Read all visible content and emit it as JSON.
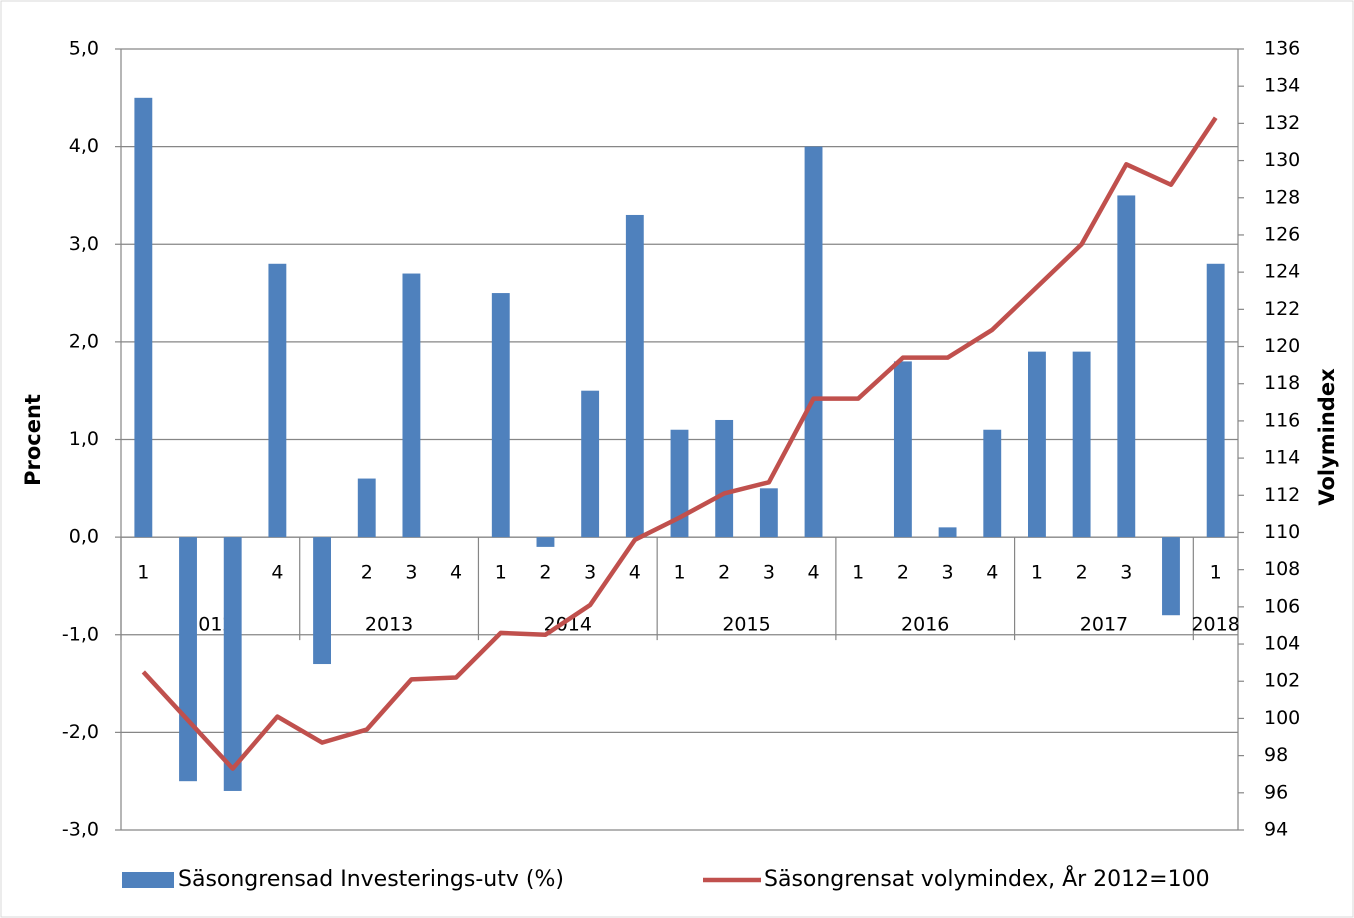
{
  "chart_data": {
    "type": "bar_line",
    "categories": [
      "1",
      "2",
      "3",
      "4",
      "1",
      "2",
      "3",
      "4",
      "1",
      "2",
      "3",
      "4",
      "1",
      "2",
      "3",
      "4",
      "1",
      "2",
      "3",
      "4",
      "1",
      "2",
      "3",
      "4",
      "1"
    ],
    "groups": [
      "2012",
      "2013",
      "2014",
      "2015",
      "2016",
      "2017",
      "2018"
    ],
    "series": [
      {
        "name": "Säsongrensad Investerings-utv (%)",
        "type": "bar",
        "color": "#4f81bd",
        "axis": "y",
        "values": [
          4.5,
          -2.5,
          -2.6,
          2.8,
          -1.3,
          0.6,
          2.7,
          0,
          2.5,
          -0.1,
          1.5,
          3.3,
          1.1,
          1.2,
          0.5,
          4.0,
          0,
          1.8,
          0.1,
          1.1,
          1.9,
          1.9,
          3.5,
          -0.8,
          2.8
        ]
      },
      {
        "name": "Säsongrensat volymindex, År 2012=100",
        "type": "line",
        "color": "#c0504d",
        "axis": "y2",
        "values": [
          102.5,
          99.9,
          97.3,
          100.1,
          98.7,
          99.4,
          102.1,
          102.2,
          104.6,
          104.5,
          106.1,
          109.6,
          110.8,
          112.1,
          112.7,
          117.2,
          117.2,
          119.4,
          119.4,
          120.9,
          123.2,
          125.5,
          129.8,
          128.7,
          132.3
        ]
      }
    ],
    "ylabel": "Procent",
    "y2label": "Volymindex",
    "ylim": [
      -3,
      5
    ],
    "yticks": [
      {
        "value": 5,
        "label": "5,0"
      },
      {
        "value": 4,
        "label": "4,0"
      },
      {
        "value": 3,
        "label": "3,0"
      },
      {
        "value": 2,
        "label": "2,0"
      },
      {
        "value": 1,
        "label": "1,0"
      },
      {
        "value": 0,
        "label": "0,0"
      },
      {
        "value": -1,
        "label": "-1,0"
      },
      {
        "value": -2,
        "label": "-2,0"
      },
      {
        "value": -3,
        "label": "-3,0"
      }
    ],
    "y2lim": [
      94,
      136
    ],
    "y2ticks": [
      94,
      96,
      98,
      100,
      102,
      104,
      106,
      108,
      110,
      112,
      114,
      116,
      118,
      120,
      122,
      124,
      126,
      128,
      130,
      132,
      134,
      136
    ],
    "grid": true,
    "legend": "bottom"
  }
}
